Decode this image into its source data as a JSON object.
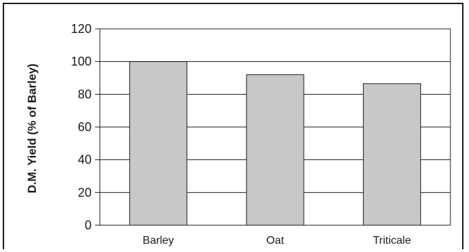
{
  "chart_data": {
    "type": "bar",
    "title": "",
    "xlabel": "",
    "ylabel": "D.M. Yield (% of Barley)",
    "categories": [
      "Barley",
      "Oat",
      "Triticale"
    ],
    "values": [
      100,
      92,
      86.5
    ],
    "ylim": [
      0,
      120
    ],
    "yticks": [
      0,
      20,
      40,
      60,
      80,
      100,
      120
    ],
    "grid": true,
    "bar_color": "#c8c8c8",
    "line_color": "#1a1a1a"
  }
}
